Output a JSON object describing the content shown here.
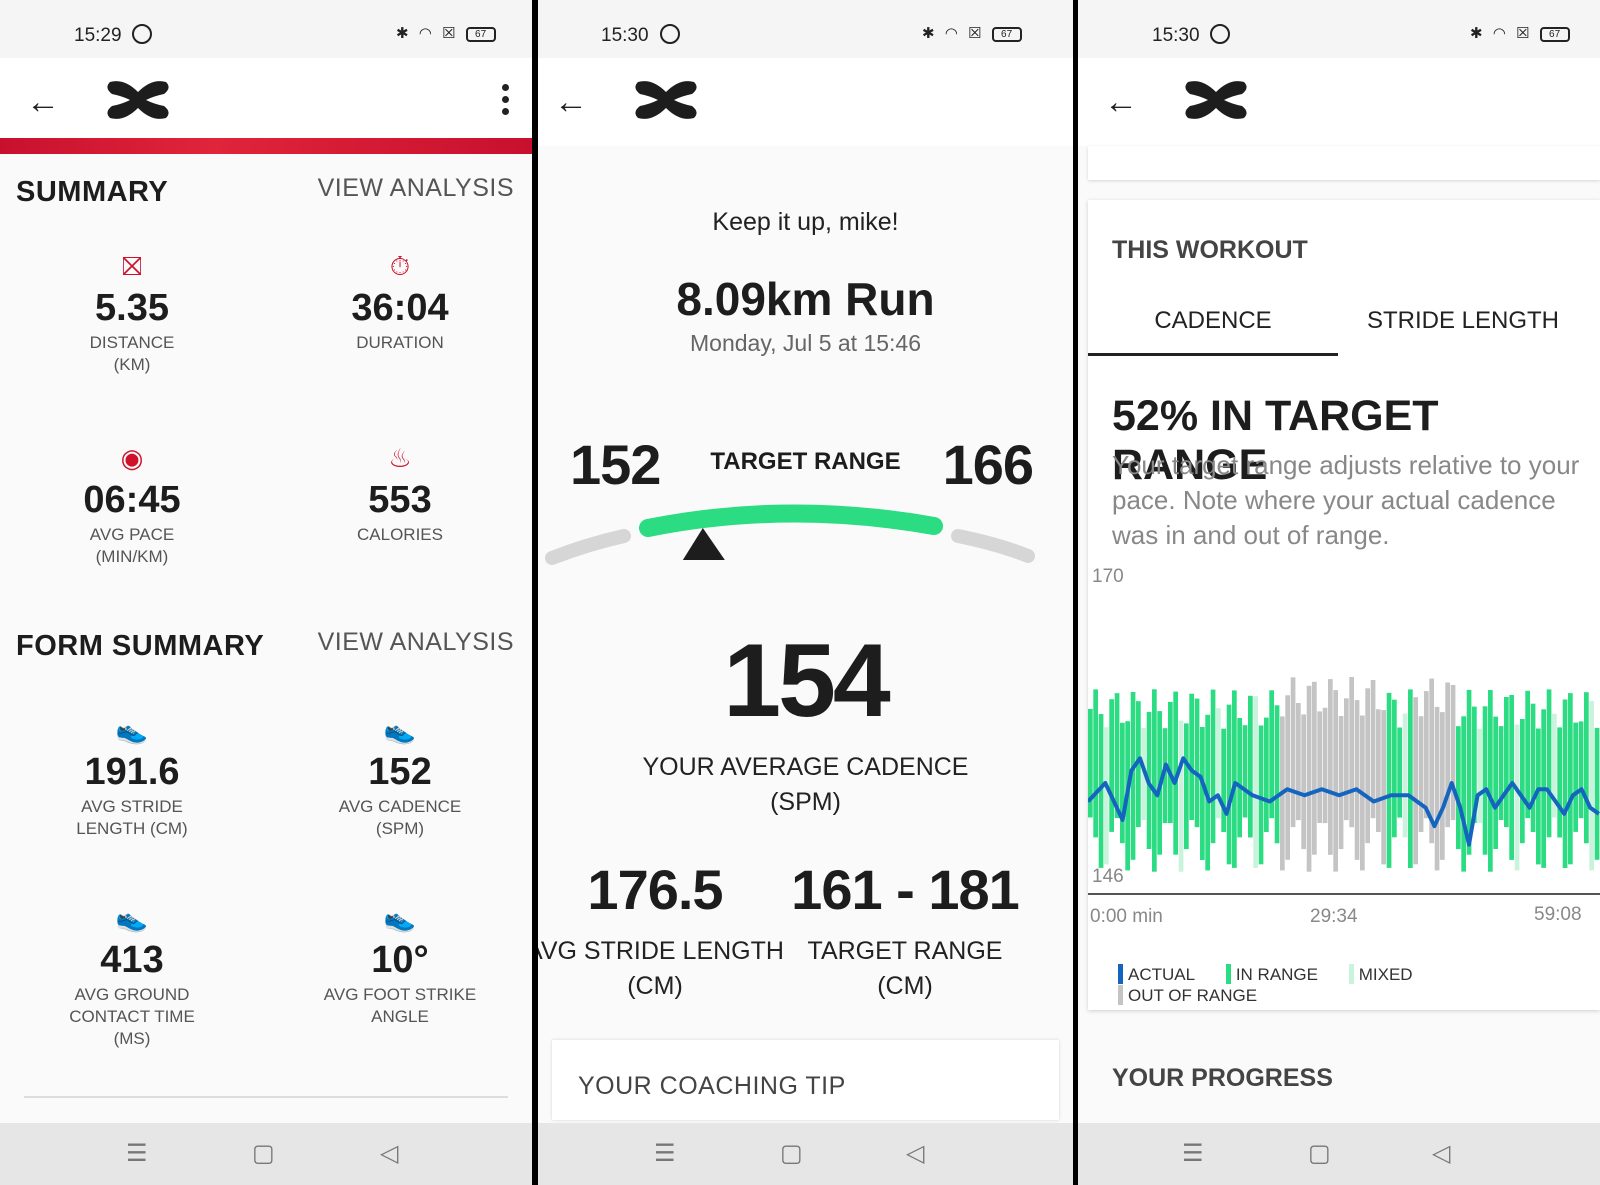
{
  "colors": {
    "brand_red": "#d0112b",
    "in_range": "#2bdc82",
    "actual": "#1565c0",
    "out_of_range": "#c4c4c4"
  },
  "status": [
    {
      "time": "15:29",
      "battery": "67"
    },
    {
      "time": "15:30",
      "battery": "67"
    },
    {
      "time": "15:30",
      "battery": "67"
    }
  ],
  "panel1": {
    "summary_title": "SUMMARY",
    "summary_link": "VIEW ANALYSIS",
    "summary_stats": [
      {
        "icon": "distance-icon",
        "value": "5.35",
        "label": "DISTANCE\n(KM)"
      },
      {
        "icon": "stopwatch-icon",
        "value": "36:04",
        "label": "DURATION"
      },
      {
        "icon": "pace-icon",
        "value": "06:45",
        "label": "AVG PACE\n(MIN/KM)"
      },
      {
        "icon": "flame-icon",
        "value": "553",
        "label": "CALORIES"
      }
    ],
    "form_title": "FORM SUMMARY",
    "form_link": "VIEW ANALYSIS",
    "form_stats": [
      {
        "icon": "shoe-icon",
        "value": "191.6",
        "label": "AVG STRIDE\nLENGTH (CM)"
      },
      {
        "icon": "shoe-icon",
        "value": "152",
        "label": "AVG CADENCE\n(SPM)"
      },
      {
        "icon": "shoe-icon",
        "value": "413",
        "label": "AVG GROUND\nCONTACT TIME\n(MS)"
      },
      {
        "icon": "shoe-icon",
        "value": "10°",
        "label": "AVG FOOT STRIKE\nANGLE"
      }
    ]
  },
  "panel2": {
    "greeting": "Keep it up, mike!",
    "run_title": "8.09km Run",
    "run_date": "Monday, Jul 5 at 15:46",
    "range_low": "152",
    "range_high": "166",
    "range_label": "TARGET RANGE",
    "gauge_value": 154,
    "gauge_min": 152,
    "gauge_max": 166,
    "avg_cadence": "154",
    "avg_cadence_label": "YOUR AVERAGE CADENCE\n(SPM)",
    "metrics": [
      {
        "value": "176.5",
        "label": "AVG STRIDE LENGTH\n(CM)"
      },
      {
        "value": "161 - 181",
        "label": "TARGET RANGE\n(CM)"
      }
    ],
    "coaching_tip": "YOUR COACHING TIP"
  },
  "panel3": {
    "card_title": "THIS WORKOUT",
    "tabs": [
      "CADENCE",
      "STRIDE LENGTH"
    ],
    "active_tab": 0,
    "headline": "52% IN TARGET RANGE",
    "description": "Your target range adjusts relative to your pace. Note where your actual cadence was in and out of range.",
    "legend": [
      "ACTUAL",
      "IN RANGE",
      "MIXED",
      "OUT OF RANGE"
    ],
    "progress_title": "YOUR PROGRESS"
  },
  "chart_data": {
    "type": "line",
    "y_max_label": "170",
    "y_min_label": "146",
    "ylim": [
      146,
      170
    ],
    "x_tick_labels": [
      "0:00 min",
      "29:34",
      "59:08"
    ],
    "xlim_minutes": [
      0,
      59.13
    ],
    "series": [
      {
        "name": "ACTUAL",
        "x": [
          0,
          2,
          4,
          5,
          6,
          7,
          8,
          9,
          10,
          11,
          12,
          13,
          14,
          15,
          16,
          17,
          19,
          21,
          23,
          25,
          27,
          29,
          31,
          33,
          35,
          37,
          39,
          40,
          41,
          42,
          43,
          44,
          45,
          46,
          47,
          48,
          49,
          50,
          51,
          52,
          53,
          54,
          55,
          56,
          57,
          58,
          59
        ],
        "y": [
          153.5,
          155,
          152,
          156,
          157,
          155,
          154,
          156.5,
          155,
          157,
          156,
          155.5,
          153.5,
          154,
          152.5,
          155,
          154,
          153.5,
          154.5,
          154,
          154.5,
          154,
          154.5,
          153.5,
          154,
          154,
          153,
          151.5,
          153,
          155,
          153,
          150,
          154,
          154.5,
          153,
          154,
          155,
          154,
          153,
          154.5,
          154.5,
          153.5,
          152.5,
          154,
          154.5,
          153,
          152.5
        ]
      }
    ],
    "bands_note": "Bars behind the line show target range per interval: in range (green), mixed (light green), out of range (grey)."
  }
}
